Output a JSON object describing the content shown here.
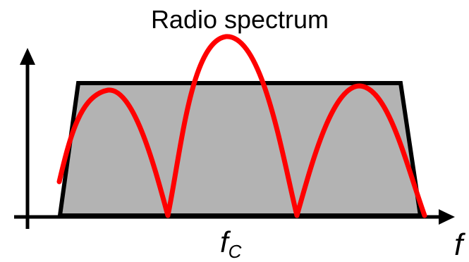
{
  "diagram": {
    "title": "Radio spectrum",
    "center_label_main": "f",
    "center_label_sub": "C",
    "axis_label": "f",
    "colors": {
      "axis": "#000000",
      "band_fill": "#b3b3b3",
      "band_stroke": "#000000",
      "curve": "#ff0000",
      "background": "#ffffff"
    }
  }
}
